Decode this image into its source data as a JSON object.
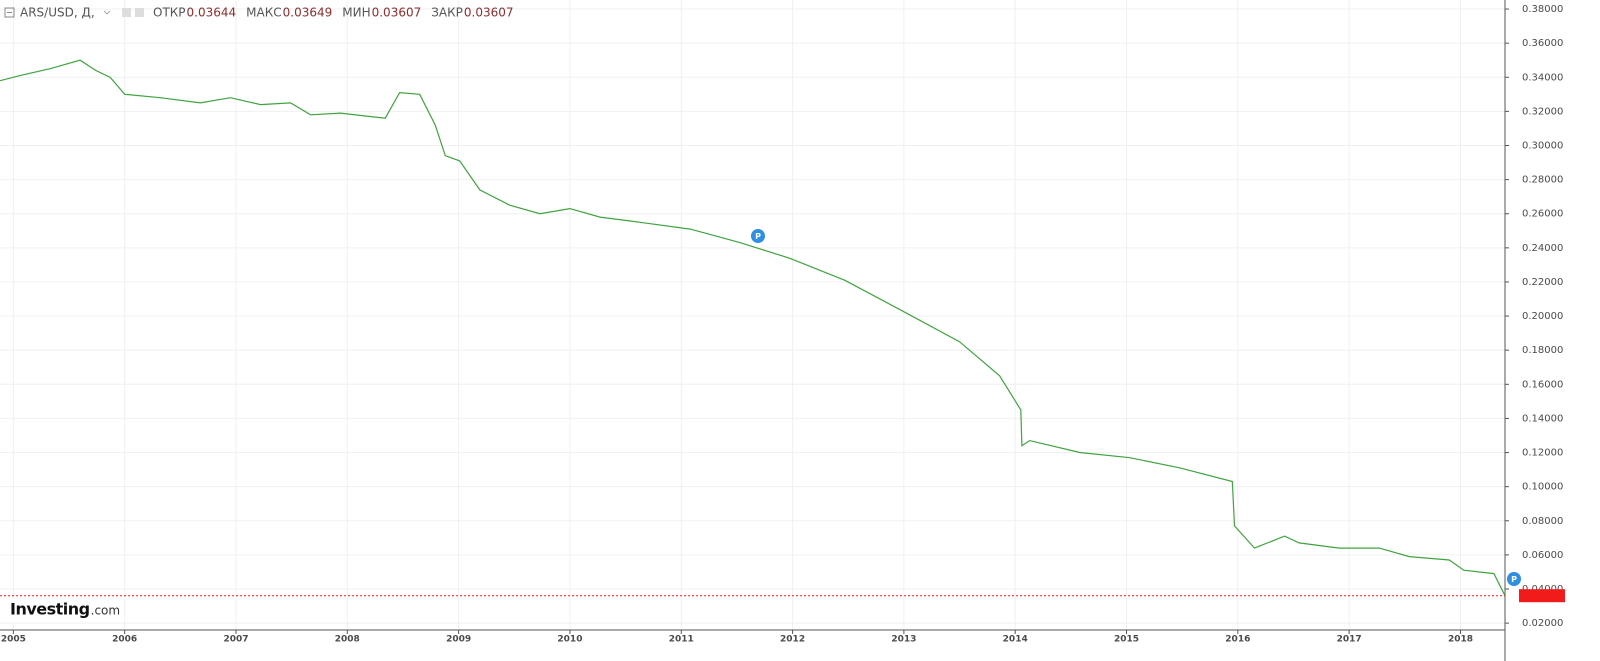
{
  "chart_data": {
    "type": "line",
    "symbol": "ARS/USD, Д,",
    "ohlc": [
      {
        "label": "ОТКР",
        "value": 0.03644
      },
      {
        "label": "МАКС",
        "value": 0.03649
      },
      {
        "label": "МИН",
        "value": 0.03607
      },
      {
        "label": "ЗАКР",
        "value": 0.03607
      }
    ],
    "x": [
      2004.88,
      2005.06,
      2005.33,
      2005.6,
      2005.74,
      2005.87,
      2006.0,
      2006.32,
      2006.68,
      2006.95,
      2007.22,
      2007.49,
      2007.67,
      2007.94,
      2008.34,
      2008.47,
      2008.65,
      2008.79,
      2008.88,
      2009.01,
      2009.19,
      2009.46,
      2009.73,
      2010.0,
      2010.27,
      2010.63,
      2011.08,
      2011.53,
      2011.97,
      2012.47,
      2012.96,
      2013.5,
      2013.86,
      2014.05,
      2014.06,
      2014.13,
      2014.58,
      2015.03,
      2015.48,
      2015.95,
      2015.97,
      2016.15,
      2016.42,
      2016.55,
      2016.91,
      2017.27,
      2017.54,
      2017.9,
      2018.03,
      2018.3,
      2018.4
    ],
    "series": [
      {
        "name": "ARS/USD",
        "color": "#3fa33f",
        "values": [
          0.338,
          0.341,
          0.345,
          0.35,
          0.344,
          0.34,
          0.33,
          0.328,
          0.325,
          0.328,
          0.324,
          0.325,
          0.318,
          0.319,
          0.316,
          0.331,
          0.33,
          0.312,
          0.294,
          0.291,
          0.274,
          0.265,
          0.26,
          0.263,
          0.258,
          0.255,
          0.251,
          0.243,
          0.234,
          0.221,
          0.204,
          0.185,
          0.165,
          0.145,
          0.124,
          0.127,
          0.12,
          0.117,
          0.111,
          0.103,
          0.077,
          0.064,
          0.071,
          0.067,
          0.064,
          0.064,
          0.059,
          0.057,
          0.051,
          0.049,
          0.03607
        ]
      }
    ],
    "last_price": 0.03607,
    "last_price_color": "#f21b1b",
    "xlim": [
      2004.88,
      2018.4
    ],
    "xticks": [
      2005,
      2006,
      2007,
      2008,
      2009,
      2010,
      2011,
      2012,
      2013,
      2014,
      2015,
      2016,
      2017,
      2018
    ],
    "ylim": [
      0.0101,
      0.3853
    ],
    "yticks": [
      {
        "value": 0.02,
        "label": "0.02000"
      },
      {
        "value": 0.04,
        "label": "0.04000"
      },
      {
        "value": 0.06,
        "label": "0.06000"
      },
      {
        "value": 0.08,
        "label": "0.08000"
      },
      {
        "value": 0.1,
        "label": "0.10000"
      },
      {
        "value": 0.12,
        "label": "0.12000"
      },
      {
        "value": 0.14,
        "label": "0.14000"
      },
      {
        "value": 0.16,
        "label": "0.16000"
      },
      {
        "value": 0.18,
        "label": "0.18000"
      },
      {
        "value": 0.2,
        "label": "0.20000"
      },
      {
        "value": 0.22,
        "label": "0.22000"
      },
      {
        "value": 0.24,
        "label": "0.24000"
      },
      {
        "value": 0.26,
        "label": "0.26000"
      },
      {
        "value": 0.28,
        "label": "0.28000"
      },
      {
        "value": 0.3,
        "label": "0.30000"
      },
      {
        "value": 0.32,
        "label": "0.32000"
      },
      {
        "value": 0.34,
        "label": "0.34000"
      },
      {
        "value": 0.36,
        "label": "0.36000"
      },
      {
        "value": 0.38,
        "label": "0.38000"
      }
    ],
    "grid": true,
    "annotations": [
      "P",
      "P"
    ],
    "logo": {
      "name": "Investing",
      "suffix": ".com"
    }
  }
}
